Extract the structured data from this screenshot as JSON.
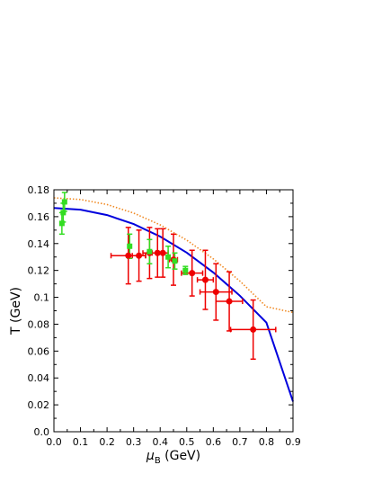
{
  "chart_data": {
    "type": "scatter",
    "title": "",
    "xlabel": {
      "symbol": "μ",
      "sub": "B",
      "rest": " (GeV)"
    },
    "ylabel": "T (GeV)",
    "xlim": [
      0,
      0.9
    ],
    "ylim": [
      0,
      0.18
    ],
    "grid": false,
    "x_ticks": [
      "0.0",
      "0.1",
      "0.2",
      "0.3",
      "0.4",
      "0.5",
      "0.6",
      "0.7",
      "0.8",
      "0.9"
    ],
    "y_ticks": [
      "0.0",
      "0.02",
      "0.04",
      "0.06",
      "0.08",
      "0.1",
      "0.12",
      "0.14",
      "0.16",
      "0.18"
    ],
    "series": [
      {
        "kind": "curve",
        "color": "#0000dd",
        "style": "solid",
        "points": [
          [
            0.0,
            0.1665
          ],
          [
            0.1,
            0.1652
          ],
          [
            0.2,
            0.1612
          ],
          [
            0.3,
            0.1545
          ],
          [
            0.4,
            0.1452
          ],
          [
            0.5,
            0.1332
          ],
          [
            0.6,
            0.1185
          ],
          [
            0.7,
            0.1012
          ],
          [
            0.8,
            0.0812
          ],
          [
            0.9,
            0.0225
          ]
        ]
      },
      {
        "kind": "curve",
        "color": "#f08a24",
        "style": "dotted",
        "points": [
          [
            0.0,
            0.174
          ],
          [
            0.1,
            0.1728
          ],
          [
            0.2,
            0.169
          ],
          [
            0.3,
            0.1627
          ],
          [
            0.4,
            0.1539
          ],
          [
            0.5,
            0.1425
          ],
          [
            0.6,
            0.1286
          ],
          [
            0.7,
            0.1121
          ],
          [
            0.8,
            0.093
          ],
          [
            0.9,
            0.0887
          ]
        ]
      },
      {
        "kind": "points",
        "marker": "circle",
        "color": "#ee0000",
        "points": [
          {
            "x": 0.28,
            "y": 0.131,
            "xerr": 0.065,
            "yerr": 0.021
          },
          {
            "x": 0.32,
            "y": 0.131,
            "xerr": 0.025,
            "yerr": 0.019
          },
          {
            "x": 0.36,
            "y": 0.133,
            "xerr": 0.025,
            "yerr": 0.019
          },
          {
            "x": 0.39,
            "y": 0.133,
            "xerr": 0.02,
            "yerr": 0.018
          },
          {
            "x": 0.41,
            "y": 0.133,
            "xerr": 0.02,
            "yerr": 0.018
          },
          {
            "x": 0.45,
            "y": 0.128,
            "xerr": 0.015,
            "yerr": 0.019
          },
          {
            "x": 0.52,
            "y": 0.118,
            "xerr": 0.04,
            "yerr": 0.017
          },
          {
            "x": 0.57,
            "y": 0.113,
            "xerr": 0.03,
            "yerr": 0.022
          },
          {
            "x": 0.61,
            "y": 0.104,
            "xerr": 0.06,
            "yerr": 0.021
          },
          {
            "x": 0.66,
            "y": 0.097,
            "xerr": 0.05,
            "yerr": 0.022
          },
          {
            "x": 0.75,
            "y": 0.076,
            "xerr": 0.085,
            "yerr": 0.022
          }
        ]
      },
      {
        "kind": "points",
        "marker": "square",
        "color": "#33dd22",
        "points": [
          {
            "x": 0.03,
            "y": 0.155,
            "xerr": 0,
            "yerr": 0.008
          },
          {
            "x": 0.035,
            "y": 0.163,
            "xerr": 0,
            "yerr": 0.007
          },
          {
            "x": 0.04,
            "y": 0.171,
            "xerr": 0,
            "yerr": 0.007
          },
          {
            "x": 0.285,
            "y": 0.138,
            "xerr": 0,
            "yerr": 0.009
          },
          {
            "x": 0.36,
            "y": 0.134,
            "xerr": 0,
            "yerr": 0.009
          },
          {
            "x": 0.43,
            "y": 0.13,
            "xerr": 0,
            "yerr": 0.008
          },
          {
            "x": 0.455,
            "y": 0.127,
            "xerr": 0,
            "yerr": 0.006
          },
          {
            "x": 0.495,
            "y": 0.12,
            "xerr": 0,
            "yerr": 0.003
          }
        ]
      }
    ]
  }
}
